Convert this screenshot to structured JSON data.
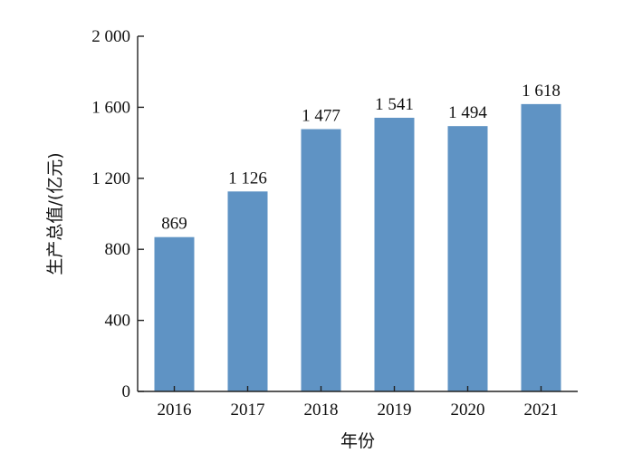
{
  "chart_data": {
    "type": "bar",
    "title": "",
    "xlabel": "年份",
    "ylabel": "生产总值/(亿元)",
    "categories": [
      "2016",
      "2017",
      "2018",
      "2019",
      "2020",
      "2021"
    ],
    "values": [
      869,
      1126,
      1477,
      1541,
      1494,
      1618
    ],
    "value_labels": [
      "869",
      "1 126",
      "1 477",
      "1 541",
      "1 494",
      "1 618"
    ],
    "ylim": [
      0,
      2000
    ],
    "yticks": [
      0,
      400,
      800,
      1200,
      1600,
      2000
    ],
    "ytick_labels": [
      "0",
      "400",
      "800",
      "1 200",
      "1 600",
      "2 000"
    ],
    "grid": false,
    "bar_color": "#5f93c4"
  }
}
